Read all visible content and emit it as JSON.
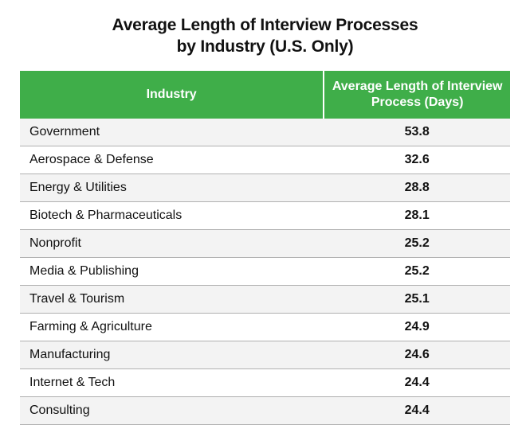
{
  "title_line1": "Average Length of Interview Processes",
  "title_line2": "by Industry (U.S. Only)",
  "header_bg": "#3fae49",
  "row_alt_bg": "#f3f3f3",
  "row_bg": "#ffffff",
  "columns": {
    "industry": "Industry",
    "value": "Average Length of Interview Process (Days)"
  },
  "rows": [
    {
      "industry": "Government",
      "value": "53.8"
    },
    {
      "industry": "Aerospace & Defense",
      "value": "32.6"
    },
    {
      "industry": "Energy & Utilities",
      "value": "28.8"
    },
    {
      "industry": "Biotech & Pharmaceuticals",
      "value": "28.1"
    },
    {
      "industry": "Nonprofit",
      "value": "25.2"
    },
    {
      "industry": "Media & Publishing",
      "value": "25.2"
    },
    {
      "industry": "Travel & Tourism",
      "value": "25.1"
    },
    {
      "industry": "Farming & Agriculture",
      "value": "24.9"
    },
    {
      "industry": "Manufacturing",
      "value": "24.6"
    },
    {
      "industry": "Internet & Tech",
      "value": "24.4"
    },
    {
      "industry": "Consulting",
      "value": "24.4"
    }
  ]
}
